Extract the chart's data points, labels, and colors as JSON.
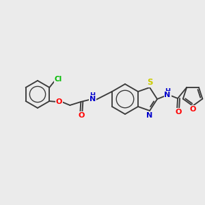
{
  "bg_color": "#ebebeb",
  "bond_color": "#3a3a3a",
  "atom_colors": {
    "O": "#ff0000",
    "N": "#0000cc",
    "S": "#cccc00",
    "Cl": "#00bb00",
    "C": "#3a3a3a"
  },
  "figsize": [
    3.0,
    3.0
  ],
  "dpi": 100
}
